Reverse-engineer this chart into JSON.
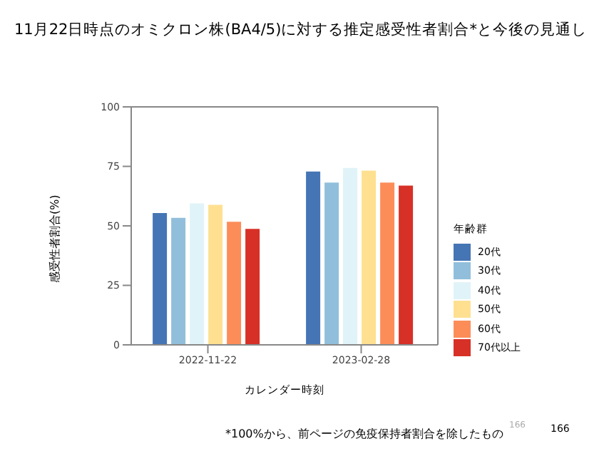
{
  "chart_data": {
    "type": "bar",
    "title": "11月22日時点のオミクロン株(BA4/5)に対する推定感受性者割合*と今後の見通し",
    "xlabel": "カレンダー時刻",
    "ylabel": "感受性者割合(%)",
    "legend_title": "年齢群",
    "categories": [
      "2022-11-22",
      "2023-02-28"
    ],
    "series": [
      {
        "name": "20代",
        "color": "#4575b4",
        "values": [
          55.4,
          72.8
        ]
      },
      {
        "name": "30代",
        "color": "#91bfdb",
        "values": [
          53.4,
          68.2
        ]
      },
      {
        "name": "40代",
        "color": "#e0f3f8",
        "values": [
          59.4,
          74.3
        ]
      },
      {
        "name": "50代",
        "color": "#fee090",
        "values": [
          58.8,
          73.2
        ]
      },
      {
        "name": "60代",
        "color": "#fc8d59",
        "values": [
          51.7,
          68.2
        ]
      },
      {
        "name": "70代以上",
        "color": "#d73027",
        "values": [
          48.7,
          66.9
        ]
      }
    ],
    "ylim": [
      0,
      100
    ],
    "yticks": [
      0,
      25,
      50,
      75,
      100
    ],
    "grid": false,
    "legend": "right",
    "annotations": [
      "*100%から、前ページの免疫保持者割合を除したもの",
      "166",
      "166"
    ]
  }
}
